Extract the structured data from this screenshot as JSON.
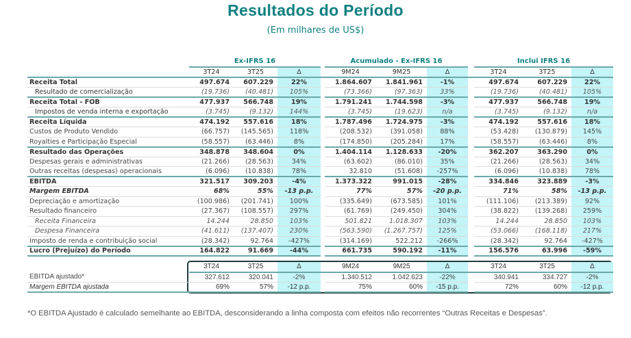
{
  "title": "Resultados do Período",
  "subtitle": "(Em milhares de US$)",
  "groups": [
    "Ex-IFRS 16",
    "Acumulado - Ex-IFRS 16",
    "Inclui IFRS 16"
  ],
  "headers": [
    "3T24",
    "3T25",
    "Δ",
    "9M24",
    "9M25",
    "Δ",
    "3T24",
    "3T25",
    "Δ"
  ],
  "rows": [
    {
      "label": "Receita Total",
      "style": "bold",
      "values": [
        "497.674",
        "607.229",
        "22%",
        "1.864.607",
        "1.841.961",
        "-1%",
        "497.674",
        "607.229",
        "22%"
      ]
    },
    {
      "label": "Resultado de comercialização",
      "style": "sub",
      "values": [
        "(19.736)",
        "(40.481)",
        "105%",
        "(73.366)",
        "(97.363)",
        "33%",
        "(19.736)",
        "(40.481)",
        "105%"
      ]
    },
    {
      "label": "Receita Total - FOB",
      "style": "bold",
      "values": [
        "477.937",
        "566.748",
        "19%",
        "1.791.241",
        "1.744.598",
        "-3%",
        "477.937",
        "566.748",
        "19%"
      ]
    },
    {
      "label": "Impostos de venda interna e exportação",
      "style": "sub",
      "values": [
        "(3.745)",
        "(9.132)",
        "144%",
        "(3.745)",
        "(19.623)",
        "n/a",
        "(3.745)",
        "(9.132)",
        "n/a"
      ]
    },
    {
      "label": "Receita Líquida",
      "style": "bold",
      "values": [
        "474.192",
        "557.616",
        "18%",
        "1.787.496",
        "1.724.975",
        "-3%",
        "474.192",
        "557.616",
        "18%"
      ]
    },
    {
      "label": "Custos de Produto Vendido",
      "style": "normal",
      "values": [
        "(66.757)",
        "(145.565)",
        "118%",
        "(208.532)",
        "(391.058)",
        "88%",
        "(53.428)",
        "(130.879)",
        "145%"
      ]
    },
    {
      "label": "Royalties e Participação Especial",
      "style": "normal",
      "values": [
        "(58.557)",
        "(63.446)",
        "8%",
        "(174.850)",
        "(205.284)",
        "17%",
        "(58.557)",
        "(63.446)",
        "8%"
      ]
    },
    {
      "label": "Resultado das Operações",
      "style": "bold",
      "values": [
        "348.878",
        "348.604",
        "0%",
        "1.404.114",
        "1.128.633",
        "-20%",
        "362.207",
        "363.290",
        "0%"
      ]
    },
    {
      "label": "Despesas gerais e administrativas",
      "style": "normal",
      "values": [
        "(21.266)",
        "(28.563)",
        "34%",
        "(63.602)",
        "(86.010)",
        "35%",
        "(21.266)",
        "(28.563)",
        "34%"
      ]
    },
    {
      "label": "Outras receitas (despesas) operacionais",
      "style": "normal",
      "values": [
        "(6.096)",
        "(10.838)",
        "78%",
        "32.810",
        "(51.608)",
        "-257%",
        "(6.096)",
        "(10.838)",
        "78%"
      ]
    },
    {
      "label": "EBITDA",
      "style": "bold",
      "values": [
        "321.517",
        "309.203",
        "-4%",
        "1.373.322",
        "991.015",
        "-28%",
        "334.846",
        "323.889",
        "-3%"
      ]
    },
    {
      "label": "Margem EBITDA",
      "style": "margin",
      "values": [
        "68%",
        "55%",
        "-13 p.p.",
        "77%",
        "57%",
        "-20 p.p.",
        "71%",
        "58%",
        "-13 p.p."
      ]
    },
    {
      "label": "Depreciação e amortização",
      "style": "normal",
      "values": [
        "(100.986)",
        "(201.741)",
        "100%",
        "(335.649)",
        "(673.585)",
        "101%",
        "(111.106)",
        "(213.389)",
        "92%"
      ]
    },
    {
      "label": "Resultado financeiro",
      "style": "normal",
      "values": [
        "(27.367)",
        "(108.557)",
        "297%",
        "(61.769)",
        "(249.450)",
        "304%",
        "(38.822)",
        "(139.268)",
        "259%"
      ]
    },
    {
      "label": "Receita Financeira",
      "style": "isub",
      "values": [
        "14.244",
        "28.850",
        "103%",
        "501.821",
        "1.018.307",
        "103%",
        "14.244",
        "28.850",
        "103%"
      ]
    },
    {
      "label": "Despesa Financeira",
      "style": "isub",
      "values": [
        "(41.611)",
        "(137.407)",
        "230%",
        "(563.590)",
        "(1.267.757)",
        "125%",
        "(53.066)",
        "(168.118)",
        "217%"
      ]
    },
    {
      "label": "Imposto de renda e contribuição social",
      "style": "normal",
      "values": [
        "(28.342)",
        "92.764",
        "-427%",
        "(314.169)",
        "522.212",
        "-266%",
        "(28.342)",
        "92.764",
        "-427%"
      ]
    },
    {
      "label": "Lucro (Prejuízo) do Período",
      "style": "bold last",
      "values": [
        "164.822",
        "91.669",
        "-44%",
        "661.735",
        "590.192",
        "-11%",
        "156.576",
        "63.996",
        "-59%"
      ]
    }
  ],
  "adjusted": {
    "headers": [
      "3T24",
      "3T25",
      "Δ",
      "9M24",
      "9M25",
      "Δ",
      "3T24",
      "3T25",
      "Δ"
    ],
    "rows": [
      {
        "label": "EBITDA ajustado*",
        "style": "normal",
        "values": [
          "327.612",
          "320.041",
          "-2%",
          "1.340.512",
          "1.042.623",
          "-22%",
          "340.941",
          "334.727",
          "-2%"
        ]
      },
      {
        "label": "Margem EBITDA ajustada",
        "style": "isub0 last",
        "values": [
          "69%",
          "57%",
          "-12 p.p.",
          "75%",
          "60%",
          "-15 p.p.",
          "72%",
          "60%",
          "-12 p.p."
        ]
      }
    ]
  },
  "footnote": "*O EBITDA Ajustado é calculado semelhante ao EBITDA, desconsiderando a linha composta com efeitos não recorrentes “Outras Receitas e Despesas”."
}
